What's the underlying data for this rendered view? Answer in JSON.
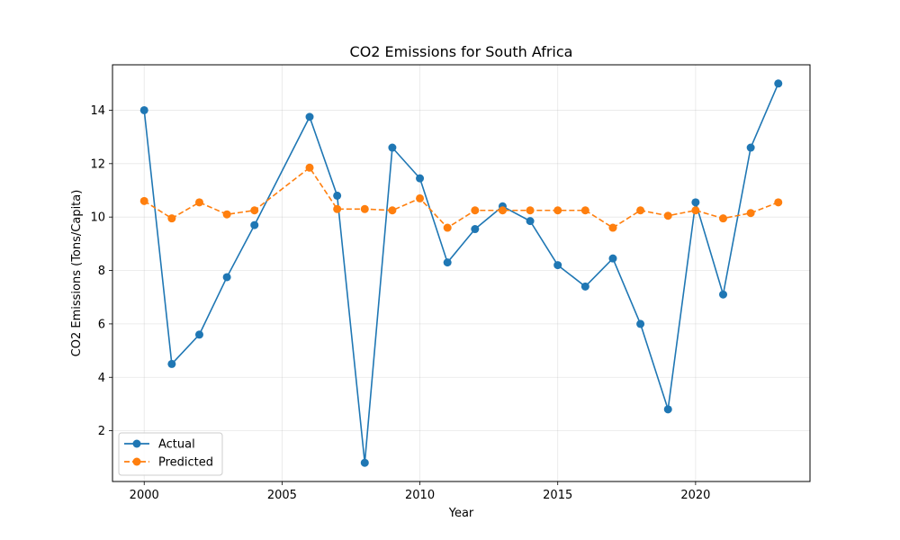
{
  "chart_data": {
    "type": "line",
    "title": "CO2 Emissions for South Africa",
    "xlabel": "Year",
    "ylabel": "CO2 Emissions (Tons/Capita)",
    "x": [
      2000,
      2001,
      2002,
      2003,
      2004,
      2006,
      2007,
      2008,
      2009,
      2010,
      2011,
      2012,
      2013,
      2014,
      2015,
      2016,
      2017,
      2018,
      2019,
      2020,
      2021,
      2022,
      2023
    ],
    "xlim": [
      1998.85,
      2024.15
    ],
    "ylim": [
      0.1,
      15.7
    ],
    "xticks": [
      2000,
      2005,
      2010,
      2015,
      2020
    ],
    "yticks": [
      2,
      4,
      6,
      8,
      10,
      12,
      14
    ],
    "grid": true,
    "legend_position": "lower-left",
    "series": [
      {
        "name": "Actual",
        "color": "#1f77b4",
        "style": "solid",
        "marker": "circle",
        "values": [
          14.0,
          4.5,
          5.6,
          7.75,
          9.7,
          13.75,
          10.8,
          0.8,
          12.6,
          11.45,
          8.3,
          9.55,
          10.4,
          9.85,
          8.2,
          7.4,
          8.45,
          6.0,
          2.8,
          10.55,
          7.1,
          12.6,
          15.0
        ]
      },
      {
        "name": "Predicted",
        "color": "#ff7f0e",
        "style": "dashed",
        "marker": "circle",
        "values": [
          10.6,
          9.95,
          10.55,
          10.1,
          10.25,
          11.85,
          10.3,
          10.3,
          10.25,
          10.7,
          9.6,
          10.25,
          10.25,
          10.25,
          10.25,
          10.25,
          9.6,
          10.25,
          10.05,
          10.25,
          9.95,
          10.15,
          10.55
        ]
      }
    ]
  }
}
